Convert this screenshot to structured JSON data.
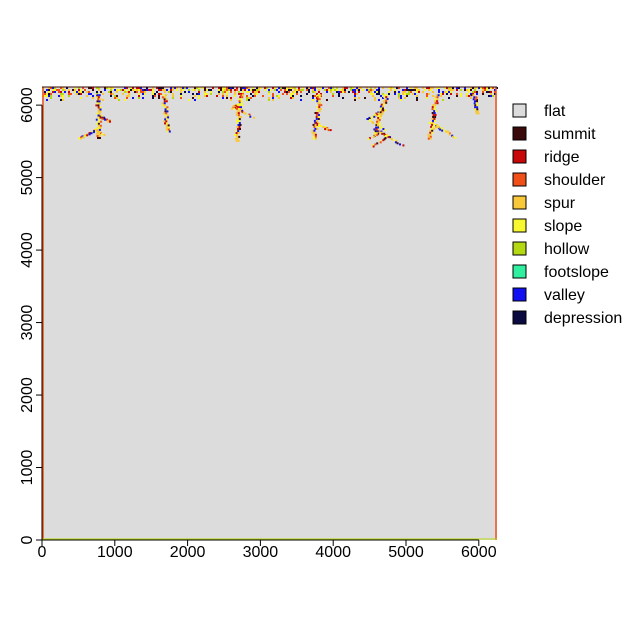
{
  "chart_data": {
    "type": "heatmap",
    "title": "",
    "xlabel": "",
    "ylabel": "",
    "xlim": [
      0,
      6250
    ],
    "ylim": [
      0,
      6250
    ],
    "x_ticks": [
      {
        "value": 0,
        "label": "0"
      },
      {
        "value": 1000,
        "label": "1000"
      },
      {
        "value": 2000,
        "label": "2000"
      },
      {
        "value": 3000,
        "label": "3000"
      },
      {
        "value": 4000,
        "label": "4000"
      },
      {
        "value": 5000,
        "label": "5000"
      },
      {
        "value": 6000,
        "label": "6000"
      }
    ],
    "y_ticks": [
      {
        "value": 0,
        "label": "0"
      },
      {
        "value": 1000,
        "label": "1000"
      },
      {
        "value": 2000,
        "label": "2000"
      },
      {
        "value": 3000,
        "label": "3000"
      },
      {
        "value": 4000,
        "label": "4000"
      },
      {
        "value": 5000,
        "label": "5000"
      },
      {
        "value": 6000,
        "label": "6000"
      }
    ],
    "background_class": "flat",
    "legend_placement": "right",
    "classes": [
      {
        "name": "flat",
        "color": "#dcdcdc"
      },
      {
        "name": "summit",
        "color": "#3a0a0a"
      },
      {
        "name": "ridge",
        "color": "#c80808"
      },
      {
        "name": "shoulder",
        "color": "#f05018"
      },
      {
        "name": "spur",
        "color": "#f8c838"
      },
      {
        "name": "slope",
        "color": "#f8f830"
      },
      {
        "name": "hollow",
        "color": "#b4d812"
      },
      {
        "name": "footslope",
        "color": "#30f0a0"
      },
      {
        "name": "valley",
        "color": "#1010f0"
      },
      {
        "name": "depression",
        "color": "#0a0a40"
      }
    ],
    "channel_features": [
      {
        "x_start": 750,
        "y_start": 6150,
        "x_end": 750,
        "y_end": 5560
      },
      {
        "x_start": 1650,
        "y_start": 6150,
        "x_end": 1700,
        "y_end": 5650
      },
      {
        "x_start": 2700,
        "y_start": 6150,
        "x_end": 2650,
        "y_end": 5520
      },
      {
        "x_start": 3800,
        "y_start": 6150,
        "x_end": 3700,
        "y_end": 5550
      },
      {
        "x_start": 4700,
        "y_start": 6150,
        "x_end": 4550,
        "y_end": 5600
      },
      {
        "x_start": 5400,
        "y_start": 6150,
        "x_end": 5300,
        "y_end": 5550
      },
      {
        "x_start": 5900,
        "y_start": 6150,
        "x_end": 5950,
        "y_end": 5900
      }
    ]
  }
}
